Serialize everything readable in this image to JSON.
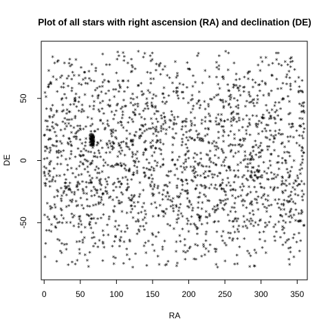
{
  "chart_data": {
    "type": "scatter",
    "title": "Plot of all stars with right ascension (RA) and declination (DE)",
    "xlabel": "RA",
    "ylabel": "DE",
    "xlim": [
      -4,
      364
    ],
    "ylim": [
      -96,
      96
    ],
    "xticks": [
      0,
      50,
      100,
      150,
      200,
      250,
      300,
      350
    ],
    "yticks": [
      -50,
      0,
      50
    ],
    "marker": "*",
    "grid": false,
    "legend": "none",
    "point_count": 2000,
    "distribution": {
      "ra_range": [
        0,
        360
      ],
      "de_range": [
        -88,
        88
      ],
      "density": "uniform in RA, denser near DE 0 and sparse near +/-80",
      "clusters": [
        {
          "ra_center": 66,
          "de_center": 16,
          "ra_spread": 3,
          "de_spread": 5,
          "count": 60
        }
      ]
    }
  }
}
